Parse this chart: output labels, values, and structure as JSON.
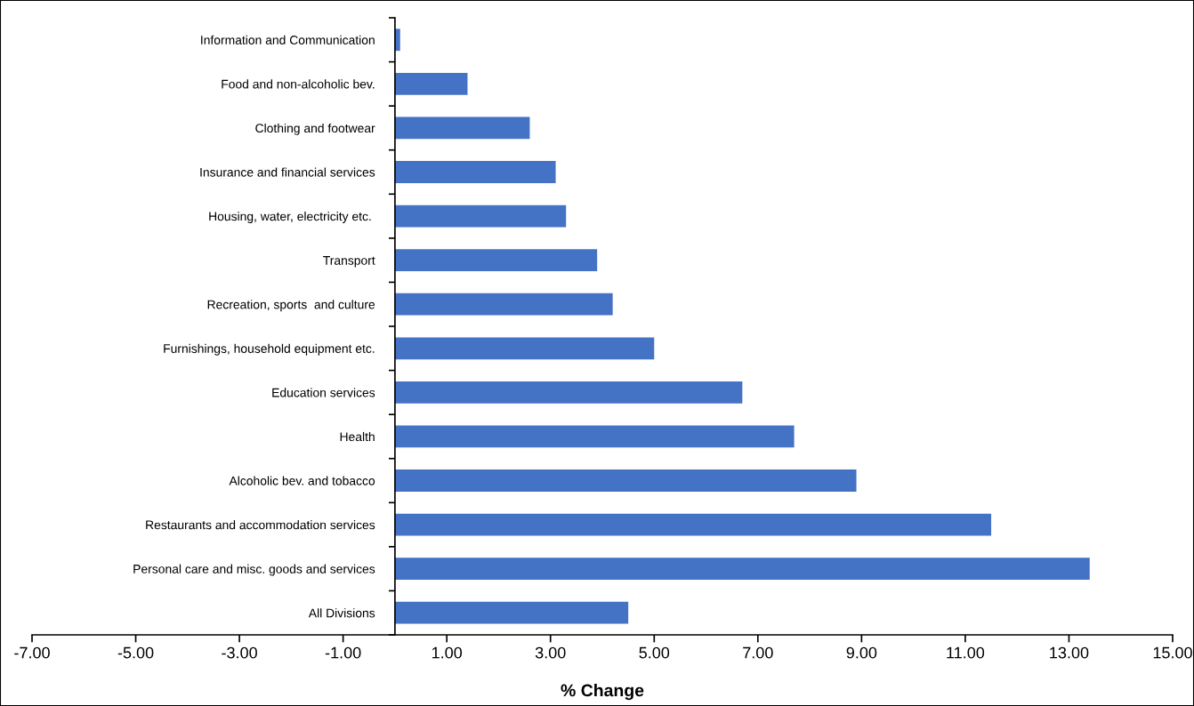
{
  "chart_data": {
    "type": "bar",
    "orientation": "horizontal",
    "xlabel": "% Change",
    "categories": [
      "Information and Communication",
      "Food and non-alcoholic bev.",
      "Clothing and footwear",
      "Insurance and financial services",
      "Housing, water, electricity etc. ",
      "Transport",
      "Recreation, sports  and culture",
      "Furnishings, household equipment etc.",
      "Education services",
      "Health",
      "Alcoholic bev. and tobacco",
      "Restaurants and accommodation services",
      "Personal care and misc. goods and services",
      "All Divisions"
    ],
    "values": [
      0.1,
      1.4,
      2.6,
      3.1,
      3.3,
      3.9,
      4.2,
      5.0,
      6.7,
      7.7,
      8.9,
      11.5,
      13.4,
      4.5
    ],
    "color": "#4472c4",
    "xlim": [
      -7,
      15
    ],
    "xticks": [
      {
        "value": -7,
        "label": "-7.00"
      },
      {
        "value": -5,
        "label": "-5.00"
      },
      {
        "value": -3,
        "label": "-3.00"
      },
      {
        "value": -1,
        "label": "-1.00"
      },
      {
        "value": 1,
        "label": "1.00"
      },
      {
        "value": 3,
        "label": "3.00"
      },
      {
        "value": 5,
        "label": "5.00"
      },
      {
        "value": 7,
        "label": "7.00"
      },
      {
        "value": 9,
        "label": "9.00"
      },
      {
        "value": 11,
        "label": "11.00"
      },
      {
        "value": 13,
        "label": "13.00"
      },
      {
        "value": 15,
        "label": "15.00"
      }
    ],
    "grid": false,
    "legend": false
  }
}
